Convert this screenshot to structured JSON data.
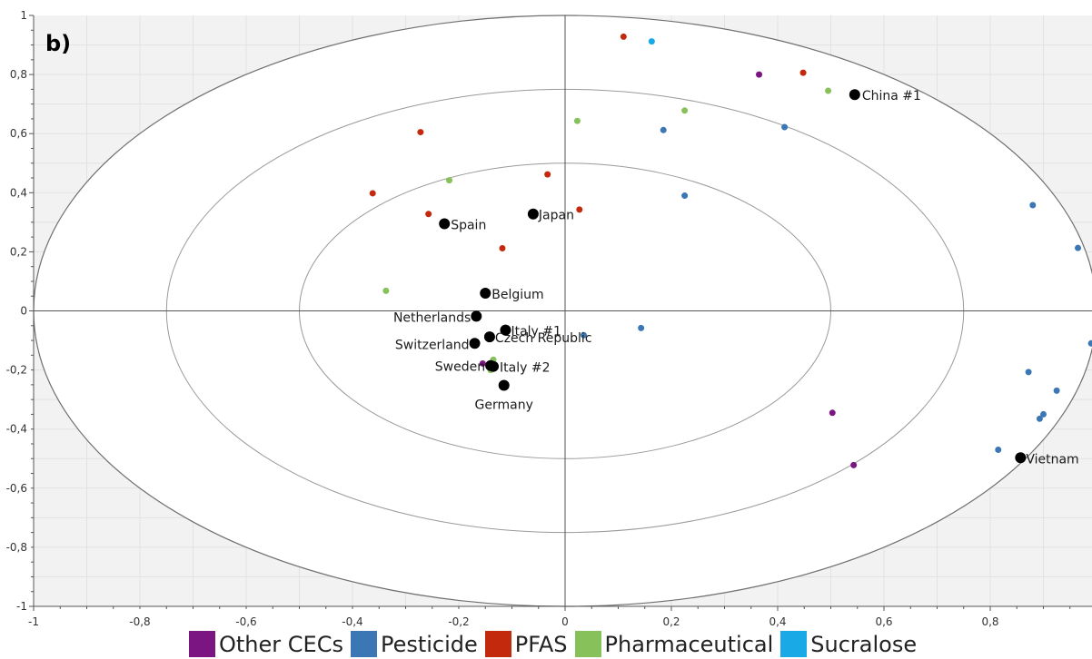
{
  "chart_data": {
    "type": "scatter",
    "panel_label": "b)",
    "xlim": [
      -1,
      1
    ],
    "ylim": [
      -1,
      1
    ],
    "x_ticks": [
      -1,
      -0.8,
      -0.6,
      -0.4,
      -0.2,
      0,
      0.2,
      0.4,
      0.6,
      0.8
    ],
    "x_tick_labels": [
      "-1",
      "-0,8",
      "-0,6",
      "-0,4",
      "-0,2",
      "0",
      "0,2",
      "0,4",
      "0,6",
      "0,8"
    ],
    "y_ticks": [
      1,
      0.8,
      0.6,
      0.4,
      0.2,
      0,
      -0.2,
      -0.4,
      -0.6,
      -0.8,
      -1
    ],
    "y_tick_labels": [
      "1",
      "0,8",
      "0,6",
      "0,4",
      "0,2",
      "0",
      "-0,2",
      "-0,4",
      "-0,6",
      "-0,8",
      "-1"
    ],
    "grid": true,
    "ellipse_radii": [
      0.5,
      0.75,
      1.0
    ],
    "legend_position": "bottom",
    "colors": {
      "Other CECs": "#7b1582",
      "Pesticide": "#3c77b5",
      "PFAS": "#c32a0d",
      "Pharmaceutical": "#86c15a",
      "Sucralose": "#18a9e6",
      "Samples": "#000000"
    },
    "legend": [
      "Other CECs",
      "Pesticide",
      "PFAS",
      "Pharmaceutical",
      "Sucralose"
    ],
    "series": [
      {
        "name": "Other CECs",
        "points": [
          [
            0.365,
            0.8
          ],
          [
            0.503,
            -0.345
          ],
          [
            0.543,
            -0.522
          ],
          [
            -0.155,
            -0.178
          ]
        ]
      },
      {
        "name": "Pesticide",
        "points": [
          [
            0.185,
            0.612
          ],
          [
            0.413,
            0.622
          ],
          [
            0.225,
            0.39
          ],
          [
            0.88,
            0.358
          ],
          [
            0.965,
            0.213
          ],
          [
            0.99,
            -0.11
          ],
          [
            0.143,
            -0.058
          ],
          [
            0.035,
            -0.082
          ],
          [
            0.872,
            -0.207
          ],
          [
            0.925,
            -0.27
          ],
          [
            0.9,
            -0.35
          ],
          [
            0.893,
            -0.365
          ],
          [
            0.815,
            -0.47
          ]
        ]
      },
      {
        "name": "PFAS",
        "points": [
          [
            0.11,
            0.928
          ],
          [
            0.448,
            0.806
          ],
          [
            -0.272,
            0.605
          ],
          [
            -0.033,
            0.462
          ],
          [
            -0.362,
            0.398
          ],
          [
            -0.257,
            0.328
          ],
          [
            0.027,
            0.343
          ],
          [
            -0.118,
            0.212
          ]
        ]
      },
      {
        "name": "Pharmaceutical",
        "points": [
          [
            0.495,
            0.745
          ],
          [
            0.225,
            0.678
          ],
          [
            0.023,
            0.643
          ],
          [
            -0.218,
            0.442
          ],
          [
            -0.337,
            0.068
          ],
          [
            -0.135,
            -0.165
          ],
          [
            -0.14,
            -0.2
          ]
        ]
      },
      {
        "name": "Sucralose",
        "points": [
          [
            0.163,
            0.912
          ]
        ]
      }
    ],
    "samples": [
      {
        "label": "China #1",
        "x": 0.545,
        "y": 0.732
      },
      {
        "label": "Spain",
        "x": -0.227,
        "y": 0.295
      },
      {
        "label": "Japan",
        "x": -0.06,
        "y": 0.328
      },
      {
        "label": "Belgium",
        "x": -0.15,
        "y": 0.06
      },
      {
        "label": "Netherlands",
        "x": -0.167,
        "y": -0.018
      },
      {
        "label": "Italy #1",
        "x": -0.112,
        "y": -0.065
      },
      {
        "label": "Czech Republic",
        "x": -0.142,
        "y": -0.088
      },
      {
        "label": "Switzerland",
        "x": -0.17,
        "y": -0.11
      },
      {
        "label": "Sweden",
        "x": -0.14,
        "y": -0.185
      },
      {
        "label": "Italy #2",
        "x": -0.135,
        "y": -0.188
      },
      {
        "label": "Germany",
        "x": -0.115,
        "y": -0.252
      },
      {
        "label": "Vietnam",
        "x": 0.857,
        "y": -0.497
      }
    ]
  }
}
